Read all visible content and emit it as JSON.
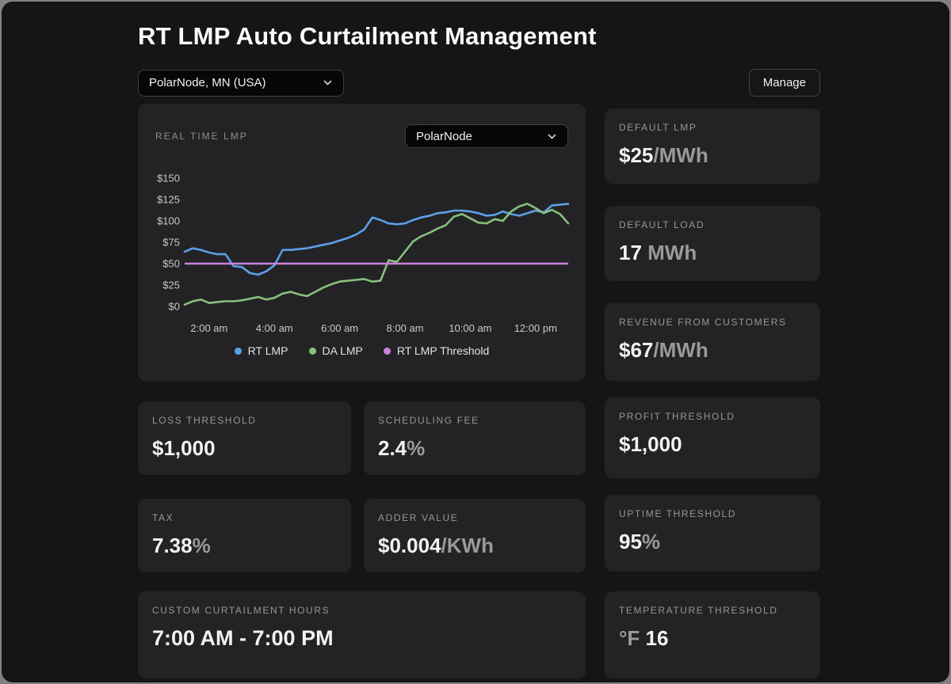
{
  "page": {
    "title": "RT LMP Auto Curtailment Management"
  },
  "toolbar": {
    "node_select_value": "PolarNode, MN (USA)",
    "manage_label": "Manage"
  },
  "chart_panel": {
    "title": "REAL TIME LMP",
    "node_select_value": "PolarNode"
  },
  "chart_data": {
    "type": "line",
    "title": "REAL TIME LMP",
    "x_start": 1.25,
    "x_end": 13,
    "x_step": 0.25,
    "x_ticks": [
      {
        "t": 2,
        "label": "2:00 am"
      },
      {
        "t": 4,
        "label": "4:00 am"
      },
      {
        "t": 6,
        "label": "6:00 am"
      },
      {
        "t": 8,
        "label": "8:00 am"
      },
      {
        "t": 10,
        "label": "10:00 am"
      },
      {
        "t": 12,
        "label": "12:00 pm"
      }
    ],
    "ylim": [
      0,
      150
    ],
    "y_ticks": [
      0,
      25,
      50,
      75,
      100,
      125,
      150
    ],
    "y_tick_prefix": "$",
    "grid": false,
    "legend_position": "bottom",
    "series": [
      {
        "name": "RT LMP",
        "color": "#5ba0e8",
        "values": [
          64,
          68,
          66,
          63,
          61,
          61,
          47,
          46,
          39,
          37,
          41,
          48,
          66,
          66,
          67,
          68,
          70,
          72,
          74,
          77,
          80,
          84,
          90,
          104,
          101,
          97,
          96,
          97,
          101,
          104,
          106,
          109,
          110,
          112,
          112,
          111,
          109,
          106,
          107,
          111,
          108,
          106,
          109,
          112,
          110,
          118,
          119,
          120
        ]
      },
      {
        "name": "DA LMP",
        "color": "#86c17a",
        "values": [
          2,
          6,
          8,
          4,
          5,
          6,
          6,
          7,
          9,
          11,
          8,
          10,
          15,
          17,
          14,
          12,
          17,
          22,
          26,
          29,
          30,
          31,
          32,
          29,
          30,
          54,
          52,
          64,
          76,
          82,
          86,
          91,
          95,
          105,
          108,
          103,
          98,
          97,
          102,
          100,
          111,
          117,
          120,
          115,
          109,
          113,
          108,
          97
        ]
      },
      {
        "name": "RT LMP Threshold",
        "color": "#c983dd",
        "constant": 50
      }
    ]
  },
  "stats": {
    "default_lmp": {
      "label": "DEFAULT LMP",
      "value": "$25",
      "unit": "/MWh"
    },
    "default_load": {
      "label": "DEFAULT LOAD",
      "value": "17",
      "unit": " MWh"
    },
    "revenue": {
      "label": "REVENUE FROM CUSTOMERS",
      "value": "$67",
      "unit": "/MWh"
    },
    "loss_threshold": {
      "label": "LOSS THRESHOLD",
      "value": "$1,000",
      "unit": ""
    },
    "scheduling_fee": {
      "label": "SCHEDULING FEE",
      "value": "2.4",
      "unit": "%"
    },
    "profit_threshold": {
      "label": "PROFIT THRESHOLD",
      "value": "$1,000",
      "unit": ""
    },
    "tax": {
      "label": "TAX",
      "value": "7.38",
      "unit": "%"
    },
    "adder_value": {
      "label": "ADDER VALUE",
      "value": "$0.004",
      "unit": "/KWh"
    },
    "uptime_threshold": {
      "label": "UPTIME THRESHOLD",
      "value": "95",
      "unit": "%"
    },
    "custom_hours": {
      "label": "CUSTOM CURTAILMENT HOURS",
      "value": "7:00 AM - 7:00 PM",
      "unit": ""
    },
    "temperature_threshold": {
      "label": "TEMPERATURE THRESHOLD",
      "unit_prefix": "°F ",
      "value": "16"
    }
  },
  "colors": {
    "page_bg": "#151515",
    "card_bg": "#232325",
    "frame": "#828282",
    "rt_lmp": "#5ba0e8",
    "da_lmp": "#86c17a",
    "threshold": "#c983dd",
    "label_gray": "#979797",
    "value_white": "#f2f2f2"
  }
}
